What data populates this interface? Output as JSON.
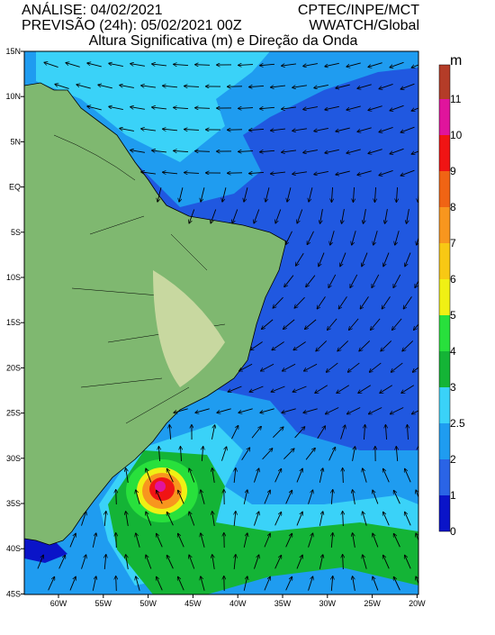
{
  "header": {
    "analysis": "ANÁLISE: 04/02/2021",
    "forecast": "PREVISÃO (24h): 05/02/2021 00Z",
    "source": "CPTEC/INPE/MCT",
    "model": "WWATCH/Global",
    "title": "Altura Significativa (m) e Direção da Onda"
  },
  "map": {
    "lat_labels": [
      "15N",
      "10N",
      "5N",
      "EQ",
      "5S",
      "10S",
      "15S",
      "20S",
      "25S",
      "30S",
      "35S",
      "40S",
      "45S"
    ],
    "lon_labels": [
      "60W",
      "55W",
      "50W",
      "45W",
      "40W",
      "35W",
      "30W",
      "25W",
      "20W"
    ]
  },
  "colorbar": {
    "unit": "m",
    "ticks": [
      0,
      1,
      2,
      2.5,
      3,
      4,
      5,
      6,
      7,
      8,
      9,
      10,
      11
    ],
    "colors": [
      "#0a14c8",
      "#2a64e6",
      "#1f9cf0",
      "#3ad2f8",
      "#14b436",
      "#28e03c",
      "#f0f014",
      "#f8c814",
      "#f8961e",
      "#f06414",
      "#f01414",
      "#e0149c",
      "#b43c28"
    ]
  }
}
